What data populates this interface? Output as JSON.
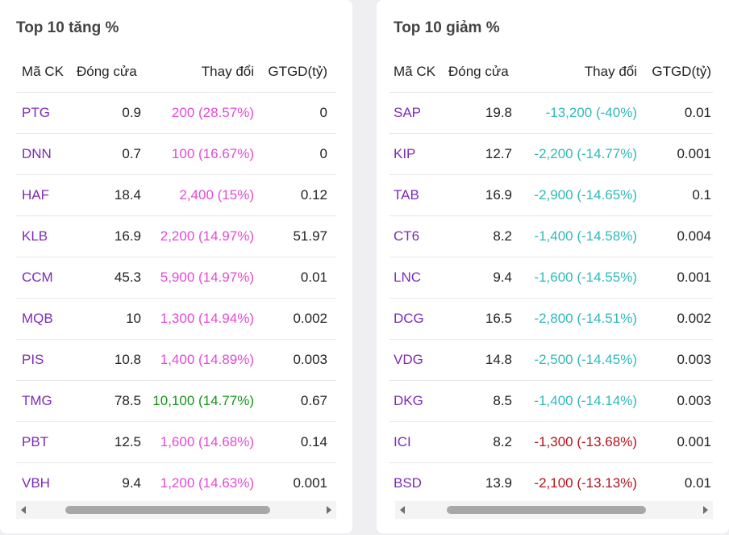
{
  "gainers": {
    "title": "Top 10 tăng %",
    "headers": {
      "code": "Mã CK",
      "close": "Đóng cửa",
      "change": "Thay đổi",
      "value": "GTGD(tỷ)"
    },
    "rows": [
      {
        "code": "PTG",
        "close": "0.9",
        "change": "200 (28.57%)",
        "value": "0",
        "status": "up"
      },
      {
        "code": "DNN",
        "close": "0.7",
        "change": "100 (16.67%)",
        "value": "0",
        "status": "up"
      },
      {
        "code": "HAF",
        "close": "18.4",
        "change": "2,400 (15%)",
        "value": "0.12",
        "status": "up"
      },
      {
        "code": "KLB",
        "close": "16.9",
        "change": "2,200 (14.97%)",
        "value": "51.97",
        "status": "up"
      },
      {
        "code": "CCM",
        "close": "45.3",
        "change": "5,900 (14.97%)",
        "value": "0.01",
        "status": "up"
      },
      {
        "code": "MQB",
        "close": "10",
        "change": "1,300 (14.94%)",
        "value": "0.002",
        "status": "up"
      },
      {
        "code": "PIS",
        "close": "10.8",
        "change": "1,400 (14.89%)",
        "value": "0.003",
        "status": "up"
      },
      {
        "code": "TMG",
        "close": "78.5",
        "change": "10,100 (14.77%)",
        "value": "0.67",
        "status": "ceiling"
      },
      {
        "code": "PBT",
        "close": "12.5",
        "change": "1,600 (14.68%)",
        "value": "0.14",
        "status": "up"
      },
      {
        "code": "VBH",
        "close": "9.4",
        "change": "1,200 (14.63%)",
        "value": "0.001",
        "status": "up"
      }
    ]
  },
  "losers": {
    "title": "Top 10 giảm %",
    "headers": {
      "code": "Mã CK",
      "close": "Đóng cửa",
      "change": "Thay đổi",
      "value": "GTGD(tỷ)"
    },
    "rows": [
      {
        "code": "SAP",
        "close": "19.8",
        "change": "-13,200 (-40%)",
        "value": "0.01",
        "status": "floor"
      },
      {
        "code": "KIP",
        "close": "12.7",
        "change": "-2,200 (-14.77%)",
        "value": "0.001",
        "status": "floor"
      },
      {
        "code": "TAB",
        "close": "16.9",
        "change": "-2,900 (-14.65%)",
        "value": "0.1",
        "status": "floor"
      },
      {
        "code": "CT6",
        "close": "8.2",
        "change": "-1,400 (-14.58%)",
        "value": "0.004",
        "status": "floor"
      },
      {
        "code": "LNC",
        "close": "9.4",
        "change": "-1,600 (-14.55%)",
        "value": "0.001",
        "status": "floor"
      },
      {
        "code": "DCG",
        "close": "16.5",
        "change": "-2,800 (-14.51%)",
        "value": "0.002",
        "status": "floor"
      },
      {
        "code": "VDG",
        "close": "14.8",
        "change": "-2,500 (-14.45%)",
        "value": "0.003",
        "status": "floor"
      },
      {
        "code": "DKG",
        "close": "8.5",
        "change": "-1,400 (-14.14%)",
        "value": "0.003",
        "status": "floor"
      },
      {
        "code": "ICI",
        "close": "8.2",
        "change": "-1,300 (-13.68%)",
        "value": "0.001",
        "status": "down"
      },
      {
        "code": "BSD",
        "close": "13.9",
        "change": "-2,100 (-13.13%)",
        "value": "0.01",
        "status": "down"
      }
    ]
  },
  "colors": {
    "code_link": "#7d2bb5",
    "up": "#e44ad6",
    "ceiling": "#169418",
    "floor": "#2fb9b9",
    "down": "#b3131b"
  },
  "icons": {
    "scroll_left": "scroll-left-arrow-icon",
    "scroll_right": "scroll-right-arrow-icon"
  }
}
